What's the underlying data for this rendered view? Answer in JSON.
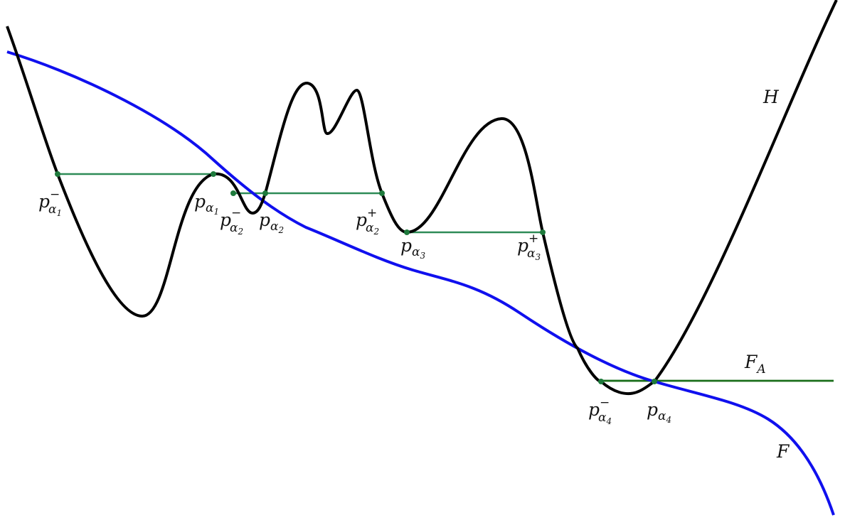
{
  "curves": {
    "H": {
      "label": "H",
      "color": "#000000"
    },
    "F": {
      "label": "F",
      "color": "#1010ee"
    },
    "F_A": {
      "label": "F",
      "label_sub": "A",
      "color": "#1a6e1a"
    }
  },
  "segment_color": "#2e8b57",
  "point_color": "#1e7a3c",
  "points": {
    "pa1m": {
      "base": "p",
      "sub": "α",
      "subsub": "1",
      "sup": "−"
    },
    "pa1": {
      "base": "p",
      "sub": "α",
      "subsub": "1",
      "sup": ""
    },
    "pa2m": {
      "base": "p",
      "sub": "α",
      "subsub": "2",
      "sup": "−"
    },
    "pa2": {
      "base": "p",
      "sub": "α",
      "subsub": "2",
      "sup": ""
    },
    "pa2p": {
      "base": "p",
      "sub": "α",
      "subsub": "2",
      "sup": "+"
    },
    "pa3": {
      "base": "p",
      "sub": "α",
      "subsub": "3",
      "sup": ""
    },
    "pa3p": {
      "base": "p",
      "sub": "α",
      "subsub": "3",
      "sup": "+"
    },
    "pa4m": {
      "base": "p",
      "sub": "α",
      "subsub": "4",
      "sup": "−"
    },
    "pa4": {
      "base": "p",
      "sub": "α",
      "subsub": "4",
      "sup": ""
    }
  }
}
